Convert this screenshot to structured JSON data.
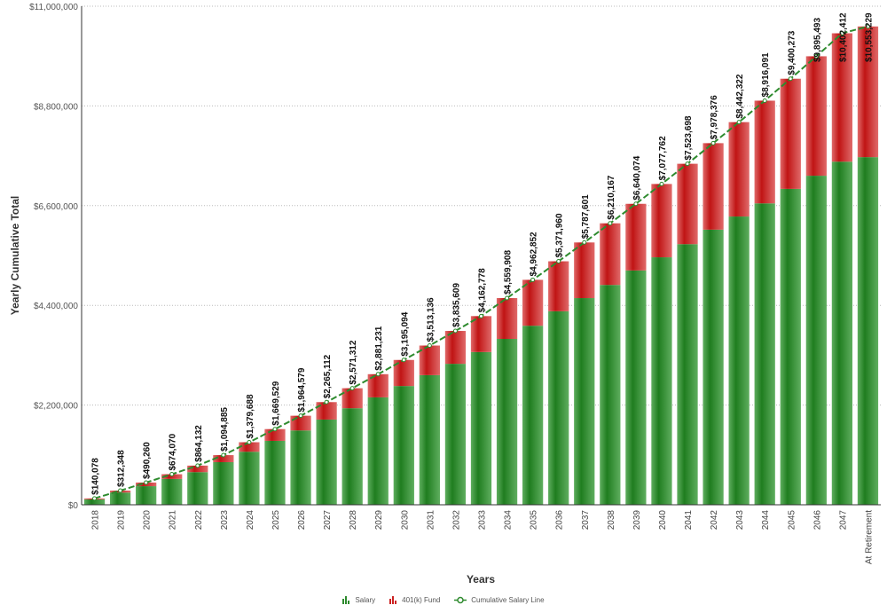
{
  "chart_data": {
    "type": "bar",
    "stacked": true,
    "xlabel": "Years",
    "ylabel": "Yearly Cumulative Total",
    "ylim": [
      0,
      11000000
    ],
    "yticks": [
      "$0",
      "$2,200,000",
      "$4,400,000",
      "$6,600,000",
      "$8,800,000",
      "$11,000,000"
    ],
    "ytick_values": [
      0,
      2200000,
      4400000,
      6600000,
      8800000,
      11000000
    ],
    "grid": true,
    "legend_position": "bottom",
    "categories": [
      "2018",
      "2019",
      "2020",
      "2021",
      "2022",
      "2023",
      "2024",
      "2025",
      "2026",
      "2027",
      "2028",
      "2029",
      "2030",
      "2031",
      "2032",
      "2033",
      "2034",
      "2035",
      "2036",
      "2037",
      "2038",
      "2039",
      "2040",
      "2041",
      "2042",
      "2043",
      "2044",
      "2045",
      "2046",
      "2047",
      "At Retirement"
    ],
    "series": [
      {
        "name": "Salary",
        "color": "#2e8b2e",
        "values": [
          120000,
          270000,
          410000,
          570000,
          720000,
          940000,
          1170000,
          1410000,
          1640000,
          1880000,
          2130000,
          2370000,
          2620000,
          2860000,
          3110000,
          3370000,
          3660000,
          3950000,
          4270000,
          4560000,
          4850000,
          5170000,
          5460000,
          5750000,
          6070000,
          6360000,
          6650000,
          6970000,
          7260000,
          7570000,
          7670000
        ]
      },
      {
        "name": "401(k) Fund",
        "color": "#cc2222",
        "values": [
          20078,
          42348,
          80260,
          104070,
          144132,
          154885,
          209688,
          259529,
          324579,
          385112,
          441312,
          511231,
          575094,
          653136,
          725609,
          792778,
          899908,
          1012852,
          1101960,
          1227601,
          1360167,
          1470074,
          1617762,
          1773698,
          1908376,
          2082322,
          2266091,
          2430273,
          2635493,
          2832412,
          2883229
        ]
      }
    ],
    "line": {
      "name": "Cumulative Salary Line",
      "color": "#2e8b2e"
    },
    "data_labels": [
      "$140,078",
      "$312,348",
      "$490,260",
      "$674,070",
      "$864,132",
      "$1,094,885",
      "$1,379,688",
      "$1,669,529",
      "$1,964,579",
      "$2,265,112",
      "$2,571,312",
      "$2,881,231",
      "$3,195,094",
      "$3,513,136",
      "$3,835,609",
      "$4,162,778",
      "$4,559,908",
      "$4,962,852",
      "$5,371,960",
      "$5,787,601",
      "$6,210,167",
      "$6,640,074",
      "$7,077,762",
      "$7,523,698",
      "$7,978,376",
      "$8,442,322",
      "$8,916,091",
      "$9,400,273",
      "$9,895,493",
      "$10,402,412",
      "$10,553,229"
    ],
    "totals": [
      140078,
      312348,
      490260,
      674070,
      864132,
      1094885,
      1379688,
      1669529,
      1964579,
      2265112,
      2571312,
      2881231,
      3195094,
      3513136,
      3835609,
      4162778,
      4559908,
      4962852,
      5371960,
      5787601,
      6210167,
      6640074,
      7077762,
      7523698,
      7978376,
      8442322,
      8916091,
      9400273,
      9895493,
      10402412,
      10553229
    ]
  }
}
